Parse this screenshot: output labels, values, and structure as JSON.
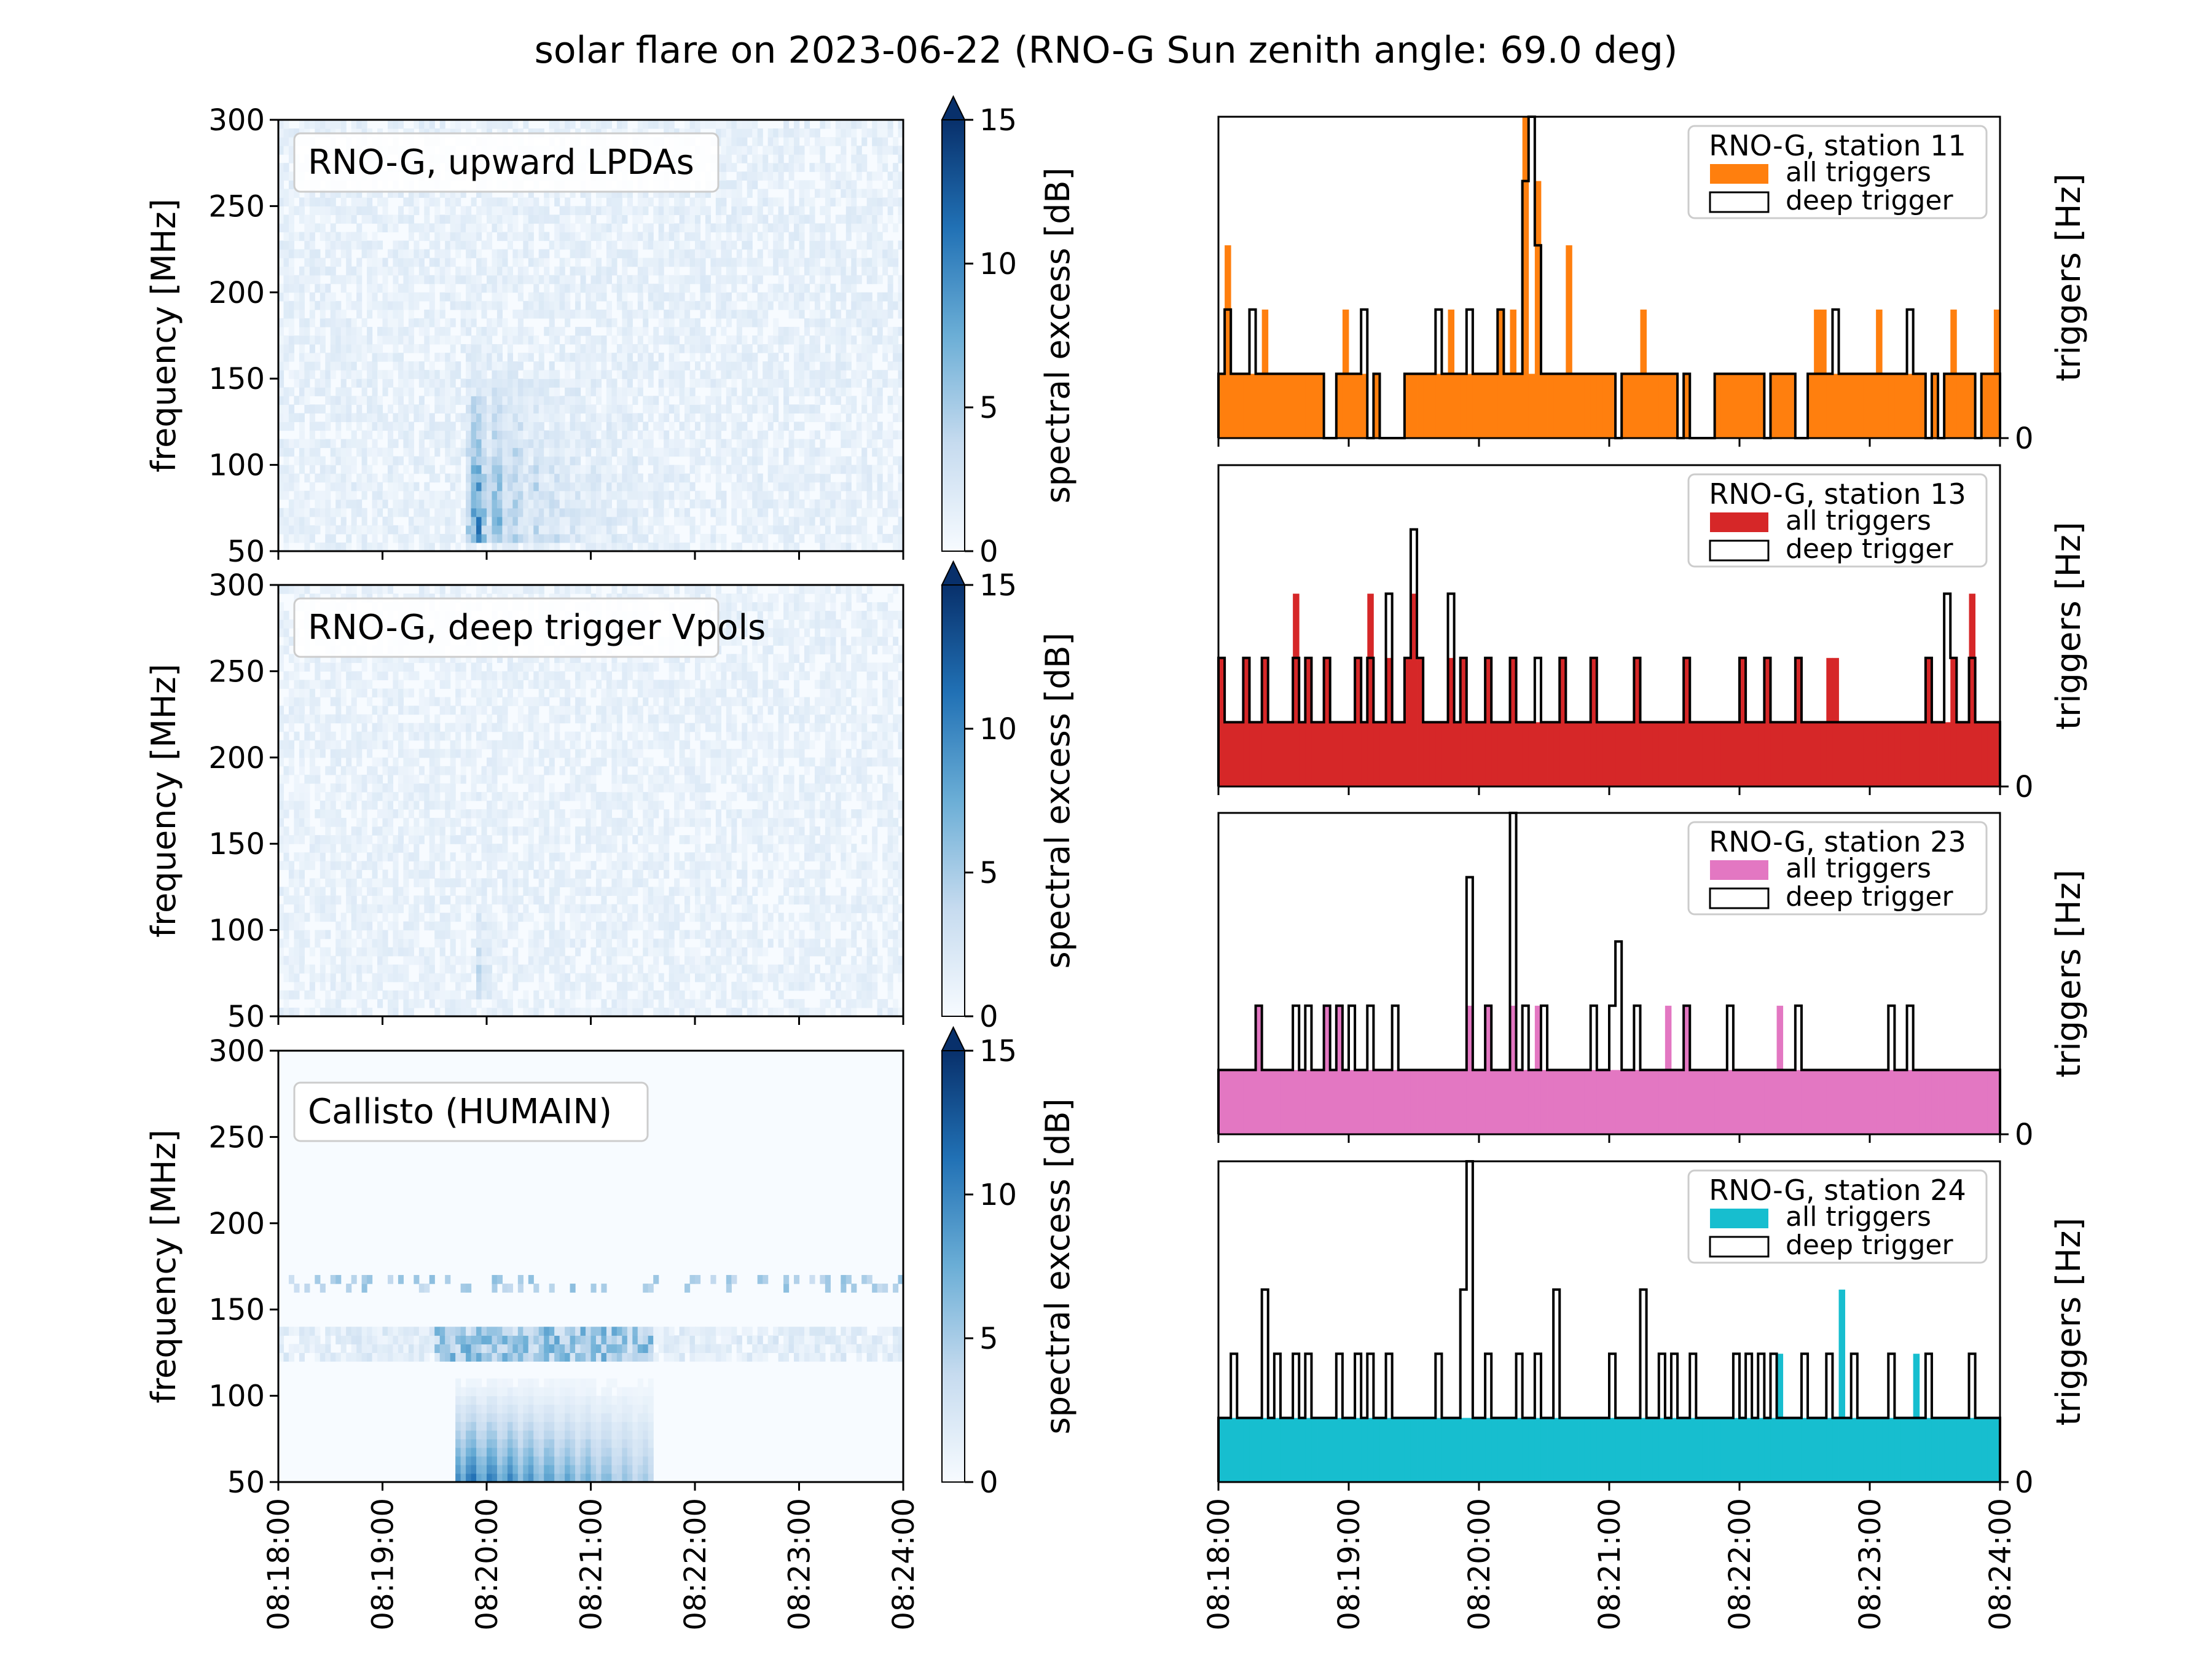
{
  "chart_data": {
    "type": "heatmap",
    "title": "solar flare on 2023-06-22 (RNO-G Sun zenith angle: 69.0 deg)",
    "time_ticks": [
      "08:18:00",
      "08:19:00",
      "08:20:00",
      "08:21:00",
      "08:22:00",
      "08:23:00",
      "08:24:00"
    ],
    "time_range_minutes": [
      0,
      6
    ],
    "spectrograms": [
      {
        "label": "RNO-G, upward LPDAs",
        "ylabel": "frequency [MHz]",
        "ylim": [
          50,
          300
        ],
        "yticks": [
          "50",
          "100",
          "150",
          "200",
          "250",
          "300"
        ],
        "colorbar_label": "spectral excess [dB]",
        "colorbar_ticks": [
          "0",
          "5",
          "10",
          "15"
        ],
        "colorbar_range": [
          0,
          15
        ],
        "colormap": "Blues",
        "burst": {
          "t_start_min": 1.8,
          "t_end_min": 3.5,
          "f_low": 55,
          "f_high": 170,
          "peak_db": 11
        }
      },
      {
        "label": "RNO-G, deep trigger Vpols",
        "ylabel": "frequency [MHz]",
        "ylim": [
          50,
          300
        ],
        "yticks": [
          "50",
          "100",
          "150",
          "200",
          "250",
          "300"
        ],
        "colorbar_label": "spectral excess [dB]",
        "colorbar_ticks": [
          "0",
          "5",
          "10",
          "15"
        ],
        "colorbar_range": [
          0,
          15
        ],
        "colormap": "Blues",
        "burst": {
          "t_start_min": 1.9,
          "t_end_min": 2.2,
          "f_low": 60,
          "f_high": 125,
          "peak_db": 5
        }
      },
      {
        "label": "Callisto (HUMAIN)",
        "ylabel": "frequency [MHz]",
        "ylim": [
          50,
          300
        ],
        "yticks": [
          "50",
          "100",
          "150",
          "200",
          "250",
          "300"
        ],
        "colorbar_label": "spectral excess [dB]",
        "colorbar_ticks": [
          "0",
          "5",
          "10",
          "15"
        ],
        "colorbar_range": [
          0,
          15
        ],
        "colormap": "Blues",
        "burst": {
          "t_start_min": 1.7,
          "t_end_min": 3.6,
          "f_low": 52,
          "f_high": 115,
          "peak_db": 12
        }
      }
    ],
    "trigger_panels": [
      {
        "legend_title": "RNO-G, station 11",
        "legend_all": "all triggers",
        "legend_deep": "deep trigger",
        "color": "#ff7f0e",
        "ylabel": "triggers [Hz]",
        "ytick": "0",
        "ymax": 5,
        "all_rate": [
          1,
          3,
          1,
          1,
          1,
          1,
          1,
          2,
          1,
          1,
          1,
          1,
          1,
          1,
          1,
          1,
          1,
          0,
          0,
          1,
          2,
          1,
          1,
          1,
          0,
          1,
          0,
          0,
          0,
          0,
          1,
          1,
          1,
          1,
          1,
          1,
          1,
          2,
          1,
          1,
          1,
          1,
          1,
          1,
          1,
          2,
          1,
          2,
          1,
          5,
          1,
          4,
          1,
          1,
          1,
          1,
          3,
          1,
          1,
          1,
          1,
          1,
          1,
          1,
          0,
          1,
          1,
          1,
          2,
          1,
          1,
          1,
          1,
          1,
          0,
          1,
          0,
          0,
          0,
          0,
          1,
          1,
          1,
          1,
          1,
          1,
          1,
          1,
          0,
          1,
          1,
          1,
          1,
          0,
          0,
          1,
          2,
          2,
          1,
          1,
          1,
          1,
          1,
          1,
          1,
          1,
          2,
          1,
          1,
          1,
          1,
          1,
          1,
          1,
          0,
          1,
          0,
          1,
          2,
          1,
          1,
          1,
          0,
          1,
          1,
          2
        ],
        "deep_rate": [
          1,
          2,
          1,
          1,
          1,
          2,
          1,
          1,
          1,
          1,
          1,
          1,
          1,
          1,
          1,
          1,
          1,
          0,
          0,
          1,
          1,
          1,
          1,
          2,
          0,
          1,
          0,
          0,
          0,
          0,
          1,
          1,
          1,
          1,
          1,
          2,
          1,
          1,
          1,
          1,
          2,
          1,
          1,
          1,
          1,
          2,
          1,
          1,
          1,
          4,
          5,
          3,
          1,
          1,
          1,
          1,
          1,
          1,
          1,
          1,
          1,
          1,
          1,
          1,
          0,
          1,
          1,
          1,
          1,
          1,
          1,
          1,
          1,
          1,
          0,
          1,
          0,
          0,
          0,
          0,
          1,
          1,
          1,
          1,
          1,
          1,
          1,
          1,
          0,
          1,
          1,
          1,
          1,
          0,
          0,
          1,
          1,
          1,
          1,
          2,
          1,
          1,
          1,
          1,
          1,
          1,
          1,
          1,
          1,
          1,
          1,
          2,
          1,
          1,
          0,
          1,
          0,
          1,
          1,
          1,
          1,
          1,
          0,
          1,
          1,
          1
        ]
      },
      {
        "legend_title": "RNO-G, station 13",
        "legend_all": "all triggers",
        "legend_deep": "deep trigger",
        "color": "#d62728",
        "ylabel": "triggers [Hz]",
        "ytick": "0",
        "ymax": 5,
        "all_rate": [
          2,
          1,
          1,
          1,
          2,
          1,
          1,
          2,
          1,
          1,
          1,
          1,
          3,
          1,
          2,
          1,
          1,
          2,
          1,
          1,
          1,
          1,
          2,
          1,
          3,
          1,
          1,
          2,
          1,
          1,
          2,
          3,
          2,
          1,
          1,
          1,
          1,
          2,
          1,
          2,
          1,
          1,
          1,
          2,
          1,
          1,
          1,
          2,
          1,
          1,
          1,
          1,
          1,
          1,
          1,
          2,
          1,
          1,
          1,
          1,
          2,
          1,
          1,
          1,
          1,
          1,
          1,
          2,
          1,
          1,
          1,
          1,
          1,
          1,
          1,
          2,
          1,
          1,
          1,
          1,
          1,
          1,
          1,
          1,
          2,
          1,
          1,
          1,
          2,
          1,
          1,
          1,
          1,
          2,
          1,
          1,
          1,
          1,
          2,
          2,
          1,
          1,
          1,
          1,
          1,
          1,
          1,
          1,
          1,
          1,
          1,
          1,
          1,
          1,
          2,
          1,
          1,
          1,
          2,
          1,
          1,
          3,
          1,
          1,
          1,
          1
        ],
        "deep_rate": [
          2,
          1,
          1,
          1,
          2,
          1,
          1,
          2,
          1,
          1,
          1,
          1,
          2,
          1,
          2,
          1,
          1,
          2,
          1,
          1,
          1,
          1,
          2,
          1,
          2,
          1,
          1,
          3,
          1,
          1,
          2,
          4,
          2,
          1,
          1,
          1,
          1,
          3,
          1,
          2,
          1,
          1,
          1,
          2,
          1,
          1,
          1,
          2,
          1,
          1,
          1,
          2,
          1,
          1,
          1,
          2,
          1,
          1,
          1,
          1,
          2,
          1,
          1,
          1,
          1,
          1,
          1,
          2,
          1,
          1,
          1,
          1,
          1,
          1,
          1,
          2,
          1,
          1,
          1,
          1,
          1,
          1,
          1,
          1,
          2,
          1,
          1,
          1,
          2,
          1,
          1,
          1,
          1,
          2,
          1,
          1,
          1,
          1,
          1,
          1,
          1,
          1,
          1,
          1,
          1,
          1,
          1,
          1,
          1,
          1,
          1,
          1,
          1,
          1,
          2,
          1,
          1,
          3,
          2,
          1,
          1,
          2,
          1,
          1,
          1,
          1
        ]
      },
      {
        "legend_title": "RNO-G, station 23",
        "legend_all": "all triggers",
        "legend_deep": "deep trigger",
        "color": "#e377c2",
        "ylabel": "triggers [Hz]",
        "ytick": "0",
        "ymax": 5,
        "all_rate": [
          1,
          1,
          1,
          1,
          1,
          1,
          2,
          1,
          1,
          1,
          1,
          1,
          1,
          1,
          1,
          1,
          1,
          2,
          1,
          2,
          1,
          1,
          1,
          1,
          1,
          1,
          1,
          1,
          1,
          1,
          1,
          1,
          1,
          1,
          1,
          1,
          1,
          1,
          1,
          1,
          2,
          1,
          1,
          2,
          1,
          1,
          1,
          2,
          1,
          1,
          1,
          2,
          1,
          1,
          1,
          1,
          1,
          1,
          1,
          1,
          1,
          1,
          1,
          1,
          1,
          1,
          1,
          1,
          1,
          1,
          1,
          1,
          2,
          1,
          1,
          2,
          1,
          1,
          1,
          1,
          1,
          1,
          1,
          1,
          1,
          1,
          1,
          1,
          1,
          1,
          2,
          1,
          1,
          1,
          1,
          1,
          1,
          1,
          1,
          1,
          1,
          1,
          1,
          1,
          1,
          1,
          1,
          1,
          1,
          1,
          1,
          1,
          1,
          1,
          1,
          1,
          1,
          1,
          1,
          1,
          1,
          1,
          1,
          1,
          1,
          1
        ],
        "deep_rate": [
          1,
          1,
          1,
          1,
          1,
          1,
          2,
          1,
          1,
          1,
          1,
          1,
          2,
          1,
          2,
          1,
          1,
          2,
          1,
          2,
          1,
          2,
          1,
          1,
          2,
          1,
          1,
          1,
          2,
          1,
          1,
          1,
          1,
          1,
          1,
          1,
          1,
          1,
          1,
          1,
          4,
          1,
          1,
          2,
          1,
          1,
          1,
          5,
          1,
          2,
          1,
          1,
          2,
          1,
          1,
          1,
          1,
          1,
          1,
          1,
          2,
          1,
          1,
          2,
          3,
          1,
          1,
          2,
          1,
          1,
          1,
          1,
          1,
          1,
          1,
          2,
          1,
          1,
          1,
          1,
          1,
          1,
          2,
          1,
          1,
          1,
          1,
          1,
          1,
          1,
          1,
          1,
          1,
          2,
          1,
          1,
          1,
          1,
          1,
          1,
          1,
          1,
          1,
          1,
          1,
          1,
          1,
          1,
          2,
          1,
          1,
          2,
          1,
          1,
          1,
          1,
          1,
          1,
          1,
          1,
          1,
          1,
          1,
          1,
          1,
          1
        ]
      },
      {
        "legend_title": "RNO-G, station 24",
        "legend_all": "all triggers",
        "legend_deep": "deep trigger",
        "color": "#17becf",
        "ylabel": "triggers [Hz]",
        "ytick": "0",
        "ymax": 5,
        "all_rate": [
          1,
          1,
          1,
          1,
          1,
          1,
          1,
          1,
          1,
          1,
          1,
          1,
          1,
          1,
          1,
          1,
          1,
          1,
          1,
          1,
          1,
          1,
          1,
          1,
          1,
          1,
          1,
          1,
          1,
          1,
          1,
          1,
          1,
          1,
          1,
          1,
          1,
          1,
          1,
          1,
          1,
          1,
          1,
          1,
          1,
          1,
          1,
          1,
          1,
          1,
          1,
          1,
          1,
          1,
          1,
          1,
          1,
          1,
          1,
          1,
          1,
          1,
          1,
          1,
          1,
          1,
          1,
          1,
          1,
          1,
          1,
          1,
          1,
          1,
          1,
          1,
          1,
          1,
          1,
          1,
          1,
          1,
          1,
          1,
          1,
          1,
          1,
          1,
          1,
          1,
          2,
          1,
          1,
          1,
          1,
          1,
          1,
          1,
          1,
          1,
          3,
          1,
          1,
          1,
          1,
          1,
          1,
          1,
          1,
          1,
          1,
          1,
          2,
          1,
          1,
          1,
          1,
          1,
          1,
          1,
          1,
          1,
          1,
          1,
          1,
          1
        ],
        "deep_rate": [
          1,
          1,
          2,
          1,
          1,
          1,
          1,
          3,
          1,
          2,
          1,
          1,
          2,
          1,
          2,
          1,
          1,
          1,
          1,
          2,
          1,
          1,
          2,
          1,
          2,
          1,
          1,
          2,
          1,
          1,
          1,
          1,
          1,
          1,
          1,
          2,
          1,
          1,
          1,
          3,
          5,
          1,
          1,
          2,
          1,
          1,
          1,
          1,
          2,
          1,
          1,
          2,
          1,
          1,
          3,
          1,
          1,
          1,
          1,
          1,
          1,
          1,
          1,
          2,
          1,
          1,
          1,
          1,
          3,
          1,
          1,
          2,
          1,
          2,
          1,
          1,
          2,
          1,
          1,
          1,
          1,
          1,
          1,
          2,
          1,
          2,
          1,
          2,
          1,
          2,
          1,
          1,
          1,
          1,
          2,
          1,
          1,
          1,
          2,
          1,
          1,
          1,
          2,
          1,
          1,
          1,
          1,
          1,
          2,
          1,
          1,
          1,
          1,
          1,
          2,
          1,
          1,
          1,
          1,
          1,
          1,
          2,
          1,
          1,
          1,
          1
        ]
      }
    ]
  }
}
